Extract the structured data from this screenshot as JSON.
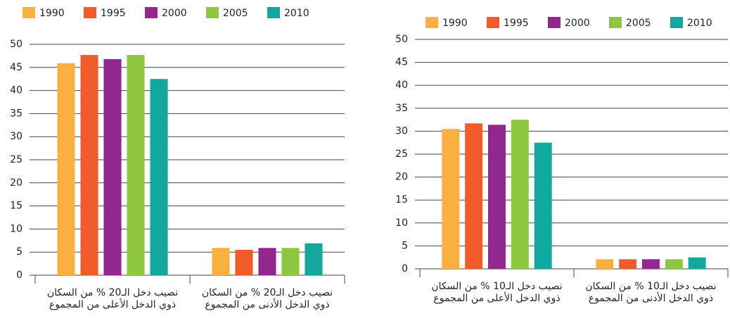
{
  "chart_data": [
    {
      "type": "bar",
      "categories": [
        "نصيب دخل الـ20 % من السكان ذوي الدخل الأعلى من المجموع",
        "نصيب دخل الـ20 % من السكان ذوي الدخل الأدنى من المجموع"
      ],
      "series": [
        {
          "name": "1990",
          "color": "#f9b03f",
          "values": [
            45.9,
            5.9
          ]
        },
        {
          "name": "1995",
          "color": "#f15a29",
          "values": [
            47.7,
            5.5
          ]
        },
        {
          "name": "2000",
          "color": "#92278f",
          "values": [
            46.8,
            5.9
          ]
        },
        {
          "name": "2005",
          "color": "#8dc63f",
          "values": [
            47.7,
            5.9
          ]
        },
        {
          "name": "2010",
          "color": "#13a89e",
          "values": [
            42.5,
            6.9
          ]
        }
      ],
      "ylim": [
        0,
        50
      ],
      "yticks": [
        0,
        5,
        10,
        15,
        20,
        25,
        30,
        35,
        40,
        45,
        50
      ],
      "grid": true
    },
    {
      "type": "bar",
      "categories": [
        "نصيب دخل الـ10 % من السكان ذوي الدخل الأعلى من المجموع",
        "نصيب دخل الـ10 % من السكان ذوي الدخل الأدنى من المجموع"
      ],
      "series": [
        {
          "name": "1990",
          "color": "#f9b03f",
          "values": [
            30.5,
            2.1
          ]
        },
        {
          "name": "1995",
          "color": "#f15a29",
          "values": [
            31.7,
            2.1
          ]
        },
        {
          "name": "2000",
          "color": "#92278f",
          "values": [
            31.4,
            2.1
          ]
        },
        {
          "name": "2005",
          "color": "#8dc63f",
          "values": [
            32.5,
            2.1
          ]
        },
        {
          "name": "2010",
          "color": "#13a89e",
          "values": [
            27.5,
            2.5
          ]
        }
      ],
      "ylim": [
        0,
        50
      ],
      "yticks": [
        0,
        5,
        10,
        15,
        20,
        25,
        30,
        35,
        40,
        45,
        50
      ],
      "grid": true
    }
  ]
}
